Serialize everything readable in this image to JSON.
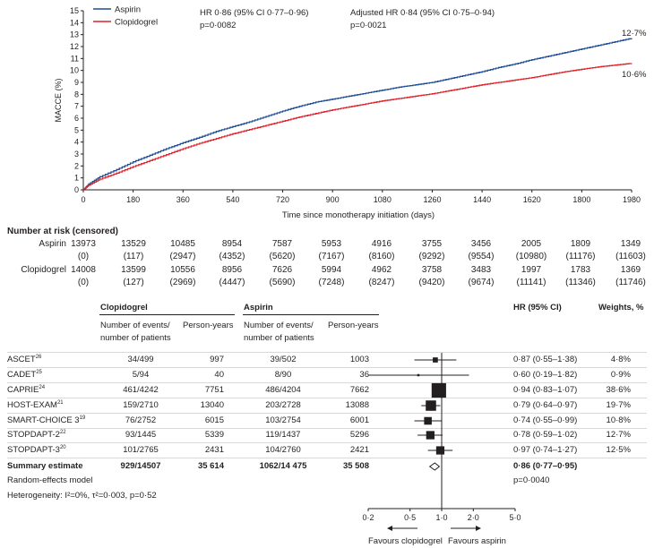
{
  "chart_data": [
    {
      "type": "line",
      "ylabel": "MACCE (%)",
      "xlabel": "Time since monotherapy initiation (days)",
      "xlim": [
        0,
        1980
      ],
      "ylim": [
        0,
        15
      ],
      "xticks": [
        0,
        180,
        360,
        540,
        720,
        900,
        1080,
        1260,
        1440,
        1620,
        1800,
        1980
      ],
      "yticks": [
        0,
        1,
        2,
        3,
        4,
        5,
        6,
        7,
        8,
        9,
        10,
        11,
        12,
        13,
        14,
        15
      ],
      "grid": false,
      "legend_position": "top-left",
      "hr_text": "HR 0·86 (95% CI 0·77–0·96)",
      "hr_p": "p=0·0082",
      "adj_text": "Adjusted HR 0·84 (95% CI 0·75–0·94)",
      "adj_p": "p=0·0021",
      "series": [
        {
          "name": "Aspirin",
          "color": "#1f4e96",
          "end_label": "12·7%",
          "x": [
            0,
            20,
            60,
            120,
            180,
            240,
            300,
            360,
            420,
            480,
            540,
            600,
            660,
            720,
            780,
            840,
            900,
            960,
            1020,
            1080,
            1140,
            1200,
            1260,
            1320,
            1380,
            1440,
            1500,
            1560,
            1620,
            1680,
            1740,
            1800,
            1860,
            1920,
            1980
          ],
          "y": [
            0,
            0.5,
            1.1,
            1.7,
            2.35,
            2.9,
            3.45,
            3.95,
            4.4,
            4.9,
            5.3,
            5.7,
            6.15,
            6.6,
            7.0,
            7.35,
            7.6,
            7.85,
            8.1,
            8.35,
            8.6,
            8.8,
            9.0,
            9.3,
            9.6,
            9.9,
            10.25,
            10.55,
            10.9,
            11.2,
            11.5,
            11.8,
            12.1,
            12.4,
            12.7
          ]
        },
        {
          "name": "Clopidogrel",
          "color": "#e0222a",
          "end_label": "10·6%",
          "x": [
            0,
            20,
            60,
            120,
            180,
            240,
            300,
            360,
            420,
            480,
            540,
            600,
            660,
            720,
            780,
            840,
            900,
            960,
            1020,
            1080,
            1140,
            1200,
            1260,
            1320,
            1380,
            1440,
            1500,
            1560,
            1620,
            1680,
            1740,
            1800,
            1860,
            1920,
            1980
          ],
          "y": [
            0,
            0.4,
            0.9,
            1.4,
            1.95,
            2.45,
            2.95,
            3.45,
            3.9,
            4.3,
            4.7,
            5.05,
            5.4,
            5.75,
            6.1,
            6.4,
            6.7,
            6.95,
            7.2,
            7.45,
            7.65,
            7.85,
            8.05,
            8.3,
            8.55,
            8.8,
            9.0,
            9.2,
            9.4,
            9.65,
            9.9,
            10.1,
            10.3,
            10.45,
            10.6
          ]
        }
      ]
    },
    {
      "type": "table",
      "title": "Number at risk (censored)",
      "rows": [
        {
          "label": "Aspirin",
          "at_risk": [
            "13973",
            "13529",
            "10485",
            "8954",
            "7587",
            "5953",
            "4916",
            "3755",
            "3456",
            "2005",
            "1809",
            "1349"
          ],
          "censored": [
            "(0)",
            "(117)",
            "(2947)",
            "(4352)",
            "(5620)",
            "(7167)",
            "(8160)",
            "(9292)",
            "(9554)",
            "(10980)",
            "(11176)",
            "(11603)"
          ]
        },
        {
          "label": "Clopidogrel",
          "at_risk": [
            "14008",
            "13599",
            "10556",
            "8956",
            "7626",
            "5994",
            "4962",
            "3758",
            "3483",
            "1997",
            "1783",
            "1369"
          ],
          "censored": [
            "(0)",
            "(127)",
            "(2969)",
            "(4447)",
            "(5690)",
            "(7248)",
            "(8247)",
            "(9420)",
            "(9674)",
            "(11141)",
            "(11346)",
            "(11746)"
          ]
        }
      ]
    },
    {
      "type": "scatter",
      "subtype": "forest",
      "x_scale": "log",
      "xlim": [
        0.2,
        5.0
      ],
      "xticks": [
        "0·2",
        "0·5",
        "1·0",
        "2·0",
        "5·0"
      ],
      "xtick_values": [
        0.2,
        0.5,
        1.0,
        2.0,
        5.0
      ],
      "favours_left": "Favours clopidogrel",
      "favours_right": "Favours aspirin",
      "headers": {
        "clopidogrel": "Clopidogrel",
        "aspirin": "Aspirin",
        "events": [
          "Number of events/",
          "number of patients"
        ],
        "person_years": "Person-years",
        "hr": "HR (95% CI)",
        "weights": "Weights, %"
      },
      "studies": [
        {
          "name": "ASCET",
          "ref": "26",
          "clop_events": "34/499",
          "clop_py": "997",
          "asp_events": "39/502",
          "asp_py": "1003",
          "hr": 0.87,
          "lo": 0.55,
          "hi": 1.38,
          "hr_text": "0·87 (0·55–1·38)",
          "weight": 4.8,
          "weight_text": "4·8%"
        },
        {
          "name": "CADET",
          "ref": "25",
          "clop_events": "5/94",
          "clop_py": "40",
          "asp_events": "8/90",
          "asp_py": "36",
          "hr": 0.6,
          "lo": 0.19,
          "hi": 1.82,
          "hr_text": "0·60 (0·19–1·82)",
          "weight": 0.9,
          "weight_text": "0·9%"
        },
        {
          "name": "CAPRIE",
          "ref": "24",
          "clop_events": "461/4242",
          "clop_py": "7751",
          "asp_events": "486/4204",
          "asp_py": "7662",
          "hr": 0.94,
          "lo": 0.83,
          "hi": 1.07,
          "hr_text": "0·94 (0·83–1·07)",
          "weight": 38.6,
          "weight_text": "38·6%"
        },
        {
          "name": "HOST-EXAM",
          "ref": "21",
          "clop_events": "159/2710",
          "clop_py": "13040",
          "asp_events": "203/2728",
          "asp_py": "13088",
          "hr": 0.79,
          "lo": 0.64,
          "hi": 0.97,
          "hr_text": "0·79 (0·64–0·97)",
          "weight": 19.7,
          "weight_text": "19·7%"
        },
        {
          "name": "SMART-CHOICE 3",
          "ref": "19",
          "clop_events": "76/2752",
          "clop_py": "6015",
          "asp_events": "103/2754",
          "asp_py": "6001",
          "hr": 0.74,
          "lo": 0.55,
          "hi": 0.99,
          "hr_text": "0·74 (0·55–0·99)",
          "weight": 10.8,
          "weight_text": "10·8%"
        },
        {
          "name": "STOPDAPT-2",
          "ref": "22",
          "clop_events": "93/1445",
          "clop_py": "5339",
          "asp_events": "119/1437",
          "asp_py": "5296",
          "hr": 0.78,
          "lo": 0.59,
          "hi": 1.02,
          "hr_text": "0·78 (0·59–1·02)",
          "weight": 12.7,
          "weight_text": "12·7%"
        },
        {
          "name": "STOPDAPT-3",
          "ref": "20",
          "clop_events": "101/2765",
          "clop_py": "2431",
          "asp_events": "104/2760",
          "asp_py": "2421",
          "hr": 0.97,
          "lo": 0.74,
          "hi": 1.27,
          "hr_text": "0·97 (0·74–1·27)",
          "weight": 12.5,
          "weight_text": "12·5%"
        }
      ],
      "summary": {
        "name": "Summary estimate",
        "clop_events": "929/14507",
        "clop_py": "35 614",
        "asp_events": "1062/14 475",
        "asp_py": "35 508",
        "hr": 0.86,
        "lo": 0.77,
        "hi": 0.95,
        "hr_text": "0·86 (0·77–0·95)",
        "p_text": "p=0·0040"
      },
      "model_text": "Random-effects model",
      "heterogeneity_text": "Heterogeneity: I²=0%, τ²=0·003, p=0·52"
    }
  ]
}
